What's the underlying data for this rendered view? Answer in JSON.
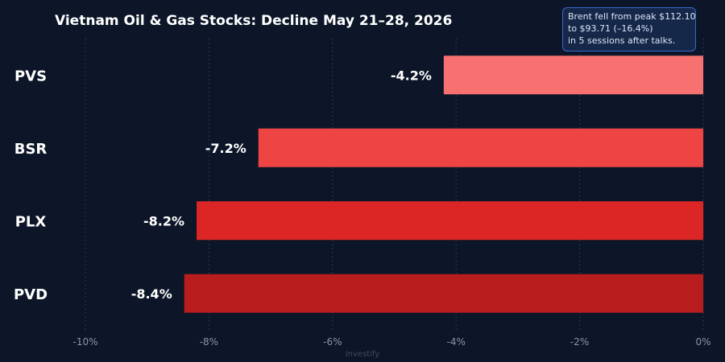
{
  "chart_data": {
    "type": "bar",
    "orientation": "horizontal",
    "title": "Vietnam Oil & Gas Stocks: Decline May 21–28, 2026",
    "categories": [
      "PVS",
      "BSR",
      "PLX",
      "PVD"
    ],
    "values": [
      -4.2,
      -7.2,
      -8.2,
      -8.4
    ],
    "value_labels": [
      "-4.2%",
      "-7.2%",
      "-8.2%",
      "-8.4%"
    ],
    "colors": [
      "#f87171",
      "#ef4444",
      "#dc2626",
      "#b91c1c"
    ],
    "xlim": [
      -10,
      0
    ],
    "x_ticks": [
      -10,
      -8,
      -6,
      -4,
      -2,
      0
    ],
    "x_tick_labels": [
      "-10%",
      "-8%",
      "-6%",
      "-4%",
      "-2%",
      "0%"
    ],
    "grid": "vertical dashed",
    "xlabel": "",
    "ylabel": "",
    "annotation": {
      "lines": [
        "Brent fell from peak $112.10",
        "to $93.71 (–16.4%)",
        "in 5 sessions after talks."
      ],
      "placement": "top-right"
    },
    "watermark": "Investify"
  }
}
